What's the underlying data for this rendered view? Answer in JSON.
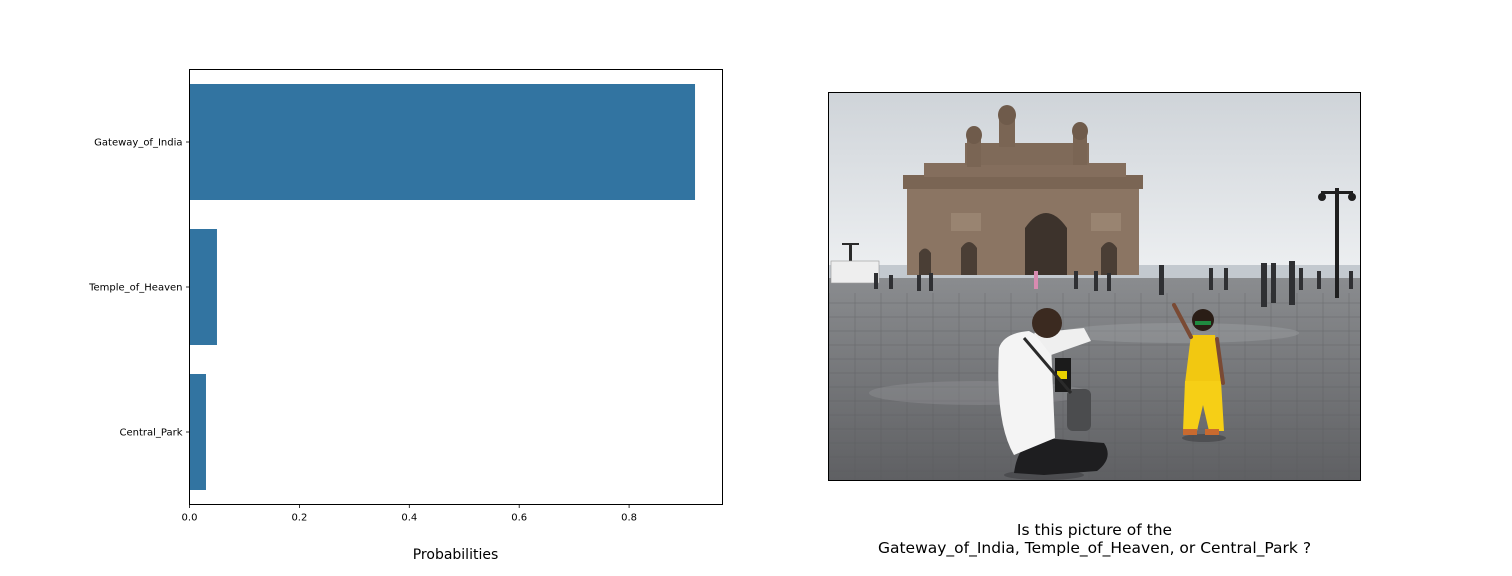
{
  "chart_data": {
    "type": "bar",
    "orientation": "horizontal",
    "categories": [
      "Gateway_of_India",
      "Temple_of_Heaven",
      "Central_Park"
    ],
    "values": [
      0.92,
      0.05,
      0.03
    ],
    "xlabel": "Probabilities",
    "ylabel": "",
    "xlim": [
      0,
      0.97
    ],
    "xticks": [
      "0.0",
      "0.2",
      "0.4",
      "0.6",
      "0.8"
    ],
    "xtick_values": [
      0,
      0.2,
      0.4,
      0.6,
      0.8
    ],
    "bar_color": "#3274a1",
    "grid": false
  },
  "question": {
    "line1": "Is this picture of the",
    "line2": "Gateway_of_India, Temple_of_Heaven, or Central_Park ?"
  },
  "photo": {
    "subject": "Gateway of India monument with a photographer kneeling and a child in yellow on a wet plaza",
    "colors": {
      "sky": "#dfe3e7",
      "stone": "#8b7563",
      "plaza": "#77787a",
      "shirt": "#f4f4f4",
      "child_outfit": "#f2c811"
    }
  }
}
